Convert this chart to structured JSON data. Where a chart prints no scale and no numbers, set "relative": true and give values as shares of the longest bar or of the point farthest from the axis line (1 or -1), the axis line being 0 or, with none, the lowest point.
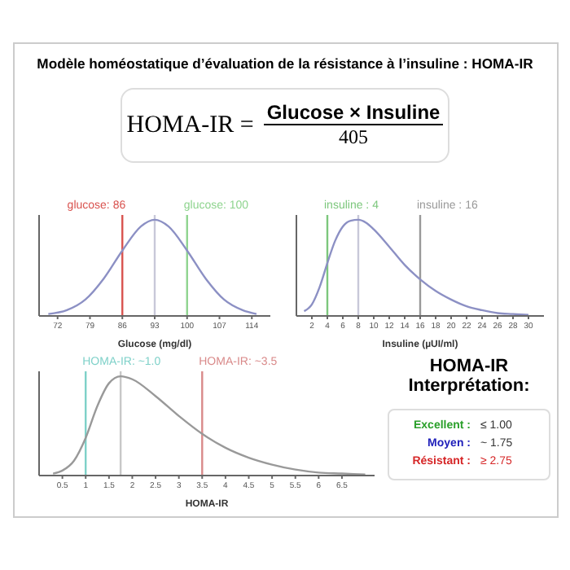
{
  "chart_data": [
    {
      "type": "other",
      "title": "Modèle homéostatique d’évaluation de la résistance à l’insuline : HOMA-IR",
      "annotations": [
        "HOMA-IR =",
        "Glucose × Insuline",
        "405"
      ]
    },
    {
      "type": "line",
      "relative": true,
      "xlabel": "Glucose (mg/dl)",
      "xlim": [
        68,
        118
      ],
      "xticks": [
        72,
        79,
        86,
        93,
        100,
        107,
        114
      ],
      "x": [
        70,
        74,
        78,
        82,
        86,
        90,
        93,
        96,
        100,
        104,
        108,
        112,
        115
      ],
      "series": [
        {
          "color": "#8c90c4",
          "values": [
            0.02,
            0.06,
            0.17,
            0.39,
            0.68,
            0.93,
            1,
            0.93,
            0.68,
            0.39,
            0.17,
            0.06,
            0.02
          ]
        }
      ],
      "ref_lines": [
        {
          "axis": "x",
          "value": 86,
          "label": "glucose: 86",
          "color": "#d9534f"
        },
        {
          "axis": "x",
          "value": 93,
          "color": "#c8c8d8"
        },
        {
          "axis": "x",
          "value": 100,
          "label": "glucose: 100",
          "color": "#8fd48f"
        }
      ],
      "marker": "none",
      "line_style": "solid"
    },
    {
      "type": "line",
      "relative": true,
      "xlabel": "Insuline (µUI/ml)",
      "xlim": [
        0,
        32
      ],
      "xticks": [
        2,
        4,
        6,
        8,
        10,
        12,
        14,
        16,
        18,
        20,
        22,
        24,
        26,
        28,
        30
      ],
      "x": [
        1,
        2,
        3,
        4,
        5,
        6,
        7,
        8,
        9,
        10,
        12,
        14,
        16,
        18,
        20,
        22,
        24,
        26,
        28,
        30
      ],
      "series": [
        {
          "color": "#8c90c4",
          "values": [
            0.05,
            0.12,
            0.3,
            0.55,
            0.78,
            0.93,
            0.99,
            1,
            0.97,
            0.9,
            0.72,
            0.53,
            0.38,
            0.26,
            0.17,
            0.1,
            0.06,
            0.03,
            0.02,
            0.01
          ]
        }
      ],
      "ref_lines": [
        {
          "axis": "x",
          "value": 4,
          "label": "insuline : 4",
          "color": "#7cc77c"
        },
        {
          "axis": "x",
          "value": 8,
          "color": "#c8c8d8"
        },
        {
          "axis": "x",
          "value": 16,
          "label": "insuline : 16",
          "color": "#999999"
        }
      ],
      "marker": "none",
      "line_style": "solid"
    },
    {
      "type": "line",
      "relative": true,
      "xlabel": "HOMA-IR",
      "xlim": [
        0,
        7.2
      ],
      "xticks": [
        0.5,
        1.0,
        1.5,
        2.0,
        2.5,
        3.0,
        3.5,
        4.0,
        4.5,
        5.0,
        5.5,
        6.0,
        6.5
      ],
      "x": [
        0.3,
        0.5,
        0.75,
        1.0,
        1.25,
        1.5,
        1.75,
        2.0,
        2.5,
        3.0,
        3.5,
        4.0,
        4.5,
        5.0,
        5.5,
        6.0,
        6.5,
        7.0
      ],
      "series": [
        {
          "color": "#999999",
          "values": [
            0.02,
            0.05,
            0.15,
            0.38,
            0.7,
            0.93,
            1,
            0.97,
            0.8,
            0.6,
            0.42,
            0.28,
            0.18,
            0.11,
            0.06,
            0.03,
            0.02,
            0.01
          ]
        }
      ],
      "ref_lines": [
        {
          "axis": "x",
          "value": 1.0,
          "label": "HOMA-IR: ~1.0",
          "color": "#7fd1c9"
        },
        {
          "axis": "x",
          "value": 1.75,
          "color": "#c8c8c8"
        },
        {
          "axis": "x",
          "value": 3.5,
          "label": "HOMA-IR: ~3.5",
          "color": "#d98a8a"
        }
      ],
      "marker": "none",
      "line_style": "solid"
    },
    {
      "type": "other",
      "title": "HOMA-IR Interprétation:",
      "annotations": [
        "Excellent :",
        "≤ 1.00",
        "Moyen :",
        "~ 1.75",
        "Résistant :",
        "≥ 2.75"
      ]
    }
  ]
}
